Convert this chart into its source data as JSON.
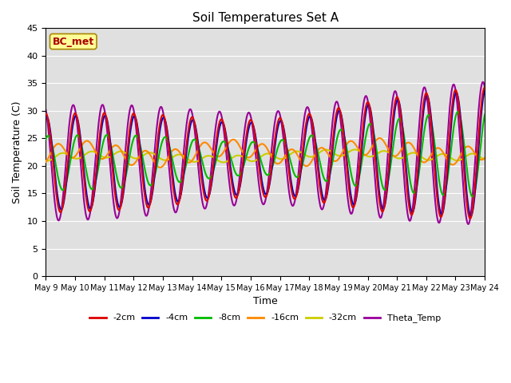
{
  "title": "Soil Temperatures Set A",
  "xlabel": "Time",
  "ylabel": "Soil Temperature (C)",
  "ylim": [
    0,
    45
  ],
  "yticks": [
    0,
    5,
    10,
    15,
    20,
    25,
    30,
    35,
    40,
    45
  ],
  "date_labels": [
    "May 9",
    "May 10",
    "May 11",
    "May 12",
    "May 13",
    "May 14",
    "May 15",
    "May 16",
    "May 17",
    "May 18",
    "May 19",
    "May 20",
    "May 21",
    "May 22",
    "May 23",
    "May 24"
  ],
  "colors": {
    "-2cm": "#dd0000",
    "-4cm": "#0000cc",
    "-8cm": "#00bb00",
    "-16cm": "#ff8800",
    "-32cm": "#cccc00",
    "Theta_Temp": "#990099"
  },
  "annotation_text": "BC_met",
  "annotation_color": "#aa0000",
  "annotation_bg": "#ffff99",
  "annotation_border": "#aa8800",
  "background_color": "#e0e0e0",
  "grid_color": "#ffffff",
  "title_fontsize": 11,
  "lw": 1.5
}
